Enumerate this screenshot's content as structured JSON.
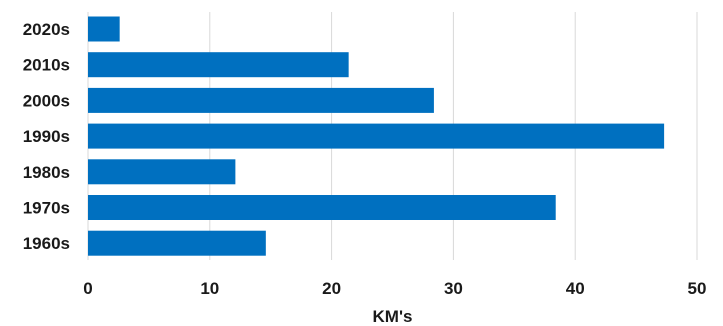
{
  "chart_data": {
    "type": "bar",
    "orientation": "horizontal",
    "title": "",
    "xlabel": "KM's",
    "ylabel": "",
    "categories": [
      "2020s",
      "2010s",
      "2000s",
      "1990s",
      "1980s",
      "1970s",
      "1960s"
    ],
    "values": [
      2.6,
      21.4,
      28.4,
      47.3,
      12.1,
      38.4,
      14.6
    ],
    "xlim": [
      0,
      50
    ],
    "xticks": [
      0,
      10,
      20,
      30,
      40,
      50
    ],
    "grid": "vertical",
    "legend": "none",
    "bar_color": "#0070c0"
  }
}
